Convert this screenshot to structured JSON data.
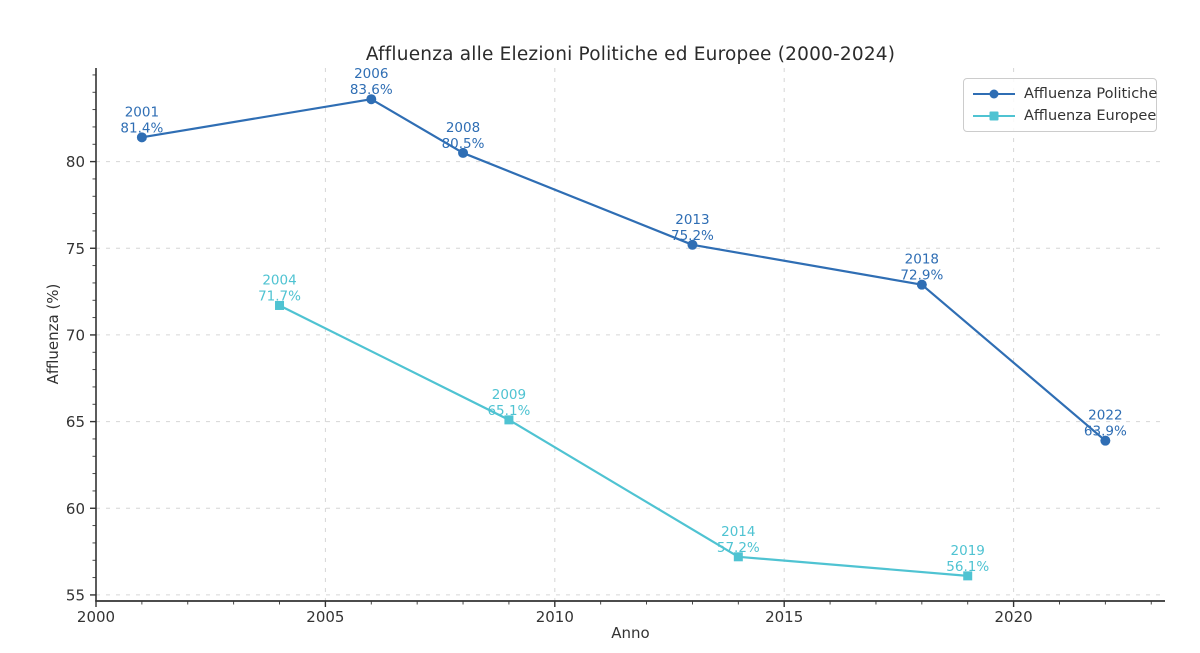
{
  "title": "Affluenza alle Elezioni Politiche ed Europee (2000-2024)",
  "colors": {
    "politiche": "#2f6eb4",
    "europee": "#4fc3d2",
    "grid": "#d6d6d6",
    "spine": "#333333",
    "tick_text": "#333333",
    "title_text": "#2b2b2b",
    "legend_border": "#cccccc"
  },
  "chart_data": {
    "type": "line",
    "title": "Affluenza alle Elezioni Politiche ed Europee (2000-2024)",
    "xlabel": "Anno",
    "ylabel": "Affluenza (%)",
    "xlim": [
      2000,
      2023.3
    ],
    "ylim": [
      54.65,
      85.4
    ],
    "xticks": [
      2000,
      2005,
      2010,
      2015,
      2020
    ],
    "yticks": [
      55,
      60,
      65,
      70,
      75,
      80
    ],
    "grid": true,
    "grid_style": "dashed",
    "legend_position": "upper-right",
    "series": [
      {
        "name": "Affluenza Politiche",
        "marker": "circle",
        "color": "#2f6eb4",
        "points": [
          {
            "x": 2001,
            "y": 81.4,
            "label_year": "2001",
            "label_value": "81.4%"
          },
          {
            "x": 2006,
            "y": 83.6,
            "label_year": "2006",
            "label_value": "83.6%"
          },
          {
            "x": 2008,
            "y": 80.5,
            "label_year": "2008",
            "label_value": "80.5%"
          },
          {
            "x": 2013,
            "y": 75.2,
            "label_year": "2013",
            "label_value": "75.2%"
          },
          {
            "x": 2018,
            "y": 72.9,
            "label_year": "2018",
            "label_value": "72.9%"
          },
          {
            "x": 2022,
            "y": 63.9,
            "label_year": "2022",
            "label_value": "63.9%"
          }
        ]
      },
      {
        "name": "Affluenza Europee",
        "marker": "square",
        "color": "#4fc3d2",
        "points": [
          {
            "x": 2004,
            "y": 71.7,
            "label_year": "2004",
            "label_value": "71.7%"
          },
          {
            "x": 2009,
            "y": 65.1,
            "label_year": "2009",
            "label_value": "65.1%"
          },
          {
            "x": 2014,
            "y": 57.2,
            "label_year": "2014",
            "label_value": "57.2%"
          },
          {
            "x": 2019,
            "y": 56.1,
            "label_year": "2019",
            "label_value": "56.1%"
          }
        ]
      }
    ]
  }
}
